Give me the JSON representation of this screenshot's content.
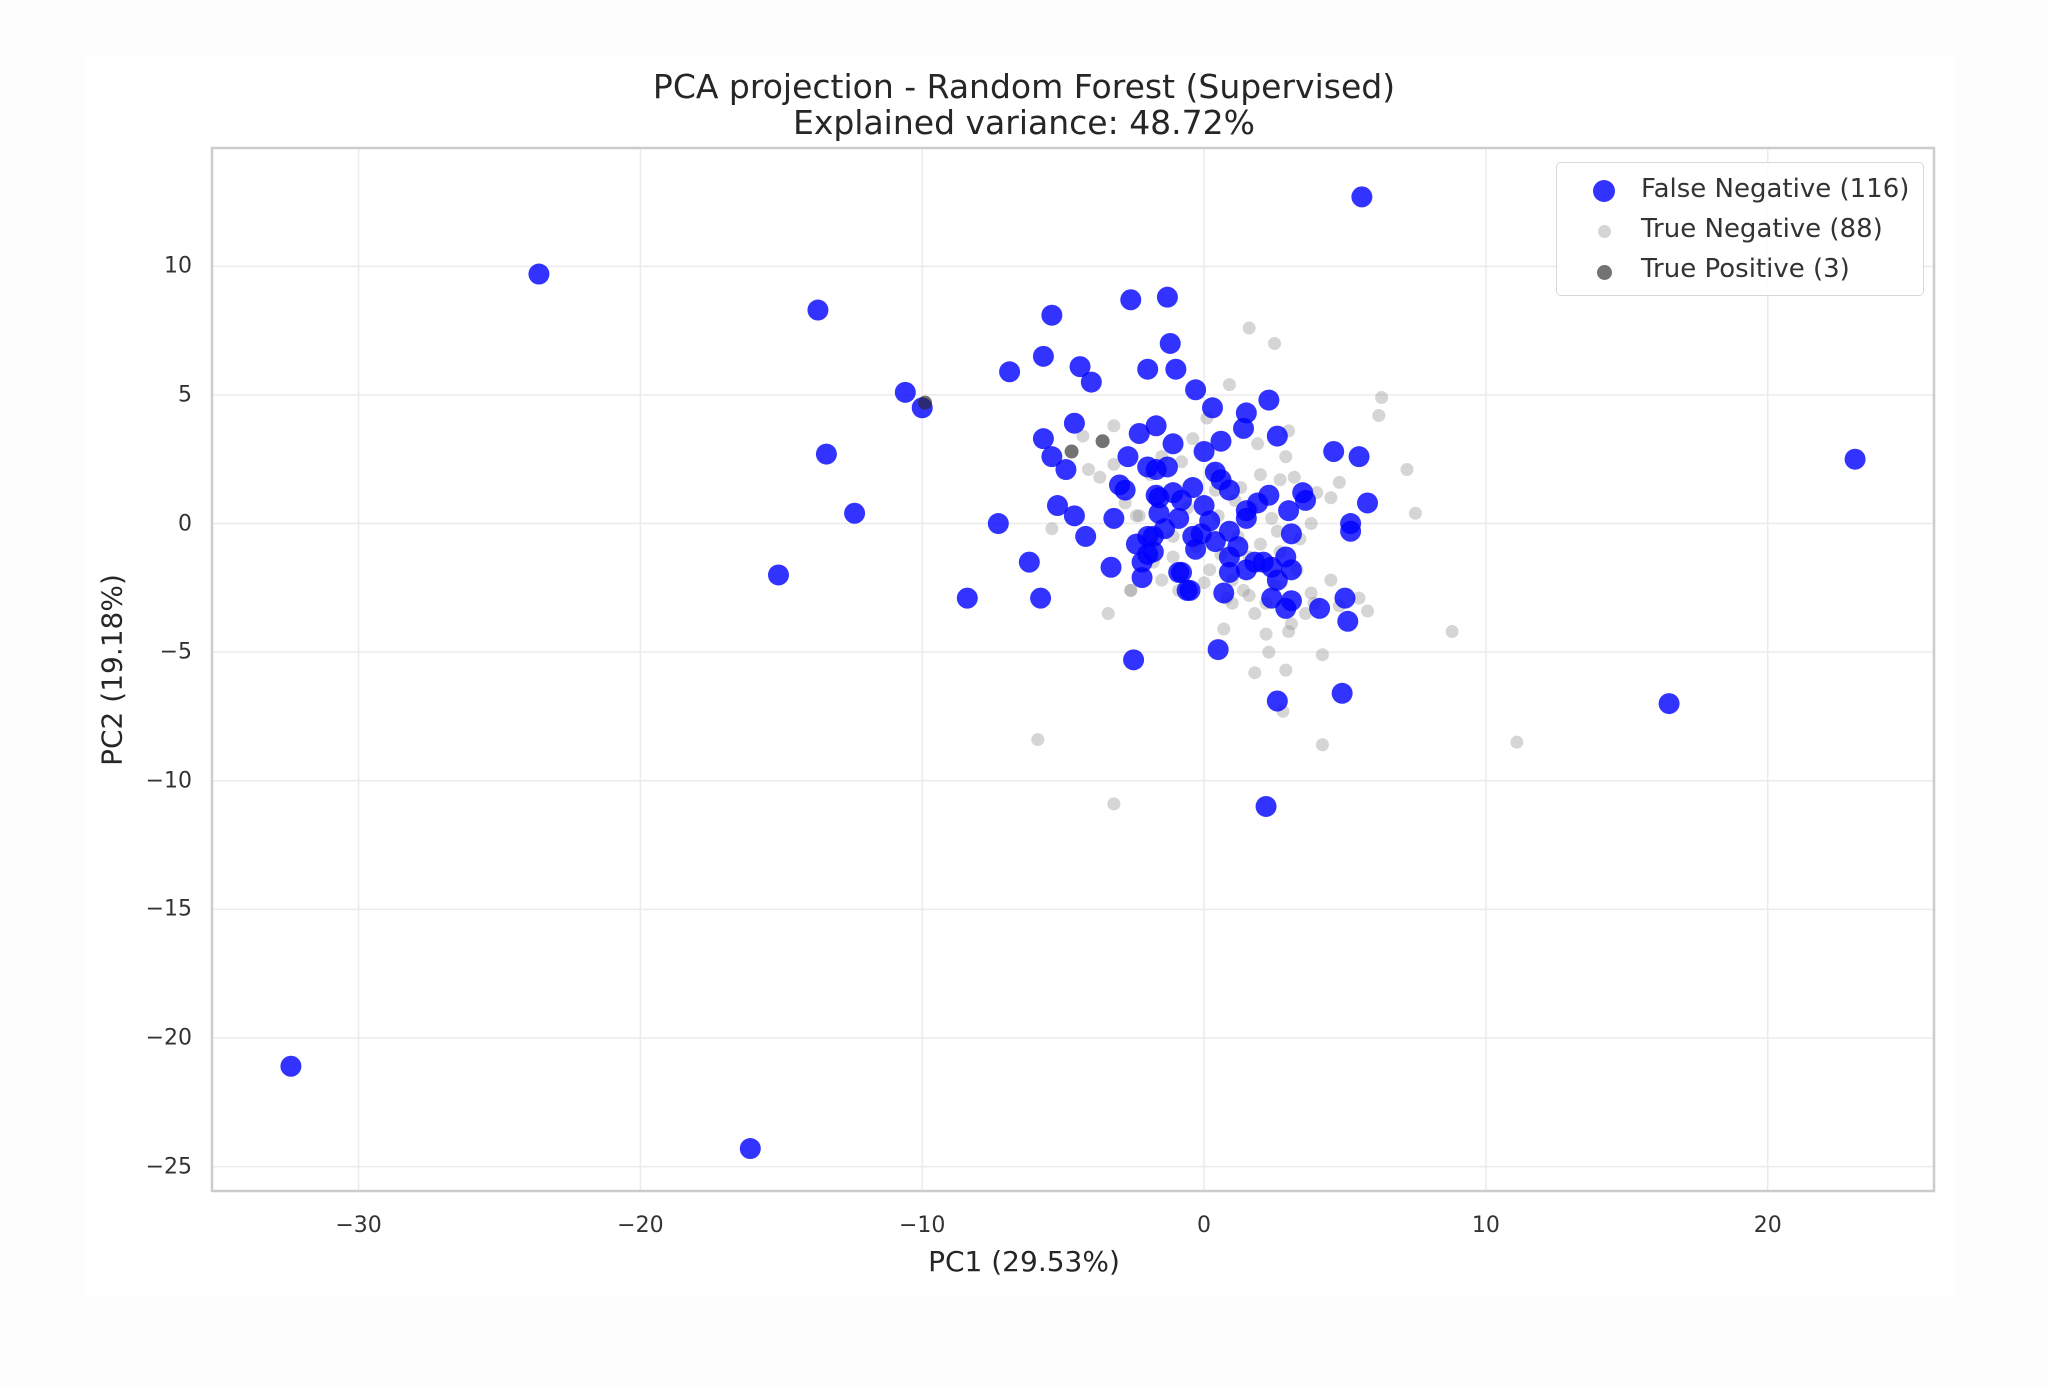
{
  "title": {
    "line1": "PCA projection - Random Forest (Supervised)",
    "line2": "Explained variance: 48.72%"
  },
  "axes": {
    "xlabel": "PC1 (29.53%)",
    "ylabel": "PC2 (19.18%)",
    "xticks": [
      "−30",
      "−20",
      "−10",
      "0",
      "10",
      "20"
    ],
    "yticks": [
      "10",
      "5",
      "0",
      "−5",
      "−10",
      "−15",
      "−20",
      "−25"
    ]
  },
  "legend": {
    "items": [
      {
        "label": "False Negative (116)",
        "color": "#0000ff"
      },
      {
        "label": "True Negative (88)",
        "color": "#bfbfbf"
      },
      {
        "label": "True Positive (3)",
        "color": "#404040"
      }
    ]
  },
  "colors": {
    "false_negative": "#0000ff",
    "true_negative": "#b0b0b0",
    "true_positive": "#333333",
    "grid": "#ebebeb",
    "frame": "#cccccc"
  },
  "chart_data": {
    "type": "scatter",
    "title": "PCA projection - Random Forest (Supervised)\nExplained variance: 48.72%",
    "xlabel": "PC1 (29.53%)",
    "ylabel": "PC2 (19.18%)",
    "xlim": [
      -35.2,
      25.9
    ],
    "ylim": [
      -25.95,
      14.6
    ],
    "xticks": [
      -30,
      -20,
      -10,
      0,
      10,
      20
    ],
    "yticks": [
      -25,
      -20,
      -15,
      -10,
      -5,
      0,
      5,
      10
    ],
    "grid": true,
    "legend_position": "upper right",
    "series": [
      {
        "name": "False Negative (116)",
        "color": "#0000ff",
        "points": [
          [
            -32.4,
            -21.1
          ],
          [
            -23.6,
            9.7
          ],
          [
            -16.1,
            -24.3
          ],
          [
            -15.1,
            -2.0
          ],
          [
            -13.7,
            8.3
          ],
          [
            -13.4,
            2.7
          ],
          [
            -12.4,
            0.4
          ],
          [
            -10.6,
            5.1
          ],
          [
            -10.0,
            4.5
          ],
          [
            -8.4,
            -2.9
          ],
          [
            -7.3,
            0.0
          ],
          [
            -6.9,
            5.9
          ],
          [
            -6.2,
            -1.5
          ],
          [
            -5.8,
            -2.9
          ],
          [
            -5.7,
            6.5
          ],
          [
            -5.7,
            3.3
          ],
          [
            -5.4,
            8.1
          ],
          [
            -5.4,
            2.6
          ],
          [
            -5.2,
            0.7
          ],
          [
            -4.9,
            2.1
          ],
          [
            -4.6,
            3.9
          ],
          [
            -4.6,
            0.3
          ],
          [
            -4.4,
            6.1
          ],
          [
            -4.2,
            -0.5
          ],
          [
            -4.0,
            5.5
          ],
          [
            -3.3,
            -1.7
          ],
          [
            -3.2,
            0.2
          ],
          [
            -2.8,
            1.3
          ],
          [
            -2.7,
            2.6
          ],
          [
            -2.6,
            8.7
          ],
          [
            -2.5,
            -5.3
          ],
          [
            -2.3,
            3.5
          ],
          [
            -2.2,
            -1.5
          ],
          [
            -2.2,
            -2.1
          ],
          [
            -2.0,
            6.0
          ],
          [
            -2.0,
            2.2
          ],
          [
            -2.0,
            -0.5
          ],
          [
            -2.0,
            -1.2
          ],
          [
            -1.7,
            3.8
          ],
          [
            -1.7,
            2.1
          ],
          [
            -1.7,
            1.1
          ],
          [
            -1.8,
            -0.5
          ],
          [
            -1.8,
            -1.1
          ],
          [
            -1.6,
            1.0
          ],
          [
            -1.6,
            0.4
          ],
          [
            -1.3,
            8.8
          ],
          [
            -1.3,
            2.2
          ],
          [
            -1.2,
            7.0
          ],
          [
            -1.1,
            3.1
          ],
          [
            -1.1,
            1.2
          ],
          [
            -1.0,
            6.0
          ],
          [
            -0.9,
            0.2
          ],
          [
            -0.9,
            -1.9
          ],
          [
            -0.8,
            -1.9
          ],
          [
            -0.6,
            -2.6
          ],
          [
            -0.5,
            -2.6
          ],
          [
            -0.4,
            1.4
          ],
          [
            -0.4,
            -0.5
          ],
          [
            -0.3,
            5.2
          ],
          [
            -0.3,
            -1.0
          ],
          [
            -0.1,
            -0.4
          ],
          [
            0.0,
            2.8
          ],
          [
            0.0,
            0.7
          ],
          [
            0.3,
            4.5
          ],
          [
            0.4,
            -0.7
          ],
          [
            0.5,
            -4.9
          ],
          [
            0.6,
            3.2
          ],
          [
            0.6,
            1.7
          ],
          [
            0.7,
            -2.7
          ],
          [
            0.9,
            1.3
          ],
          [
            0.9,
            -0.3
          ],
          [
            0.9,
            -1.3
          ],
          [
            0.9,
            -1.9
          ],
          [
            1.4,
            3.7
          ],
          [
            1.5,
            4.3
          ],
          [
            1.5,
            0.5
          ],
          [
            1.5,
            0.2
          ],
          [
            1.5,
            -1.8
          ],
          [
            1.8,
            -1.5
          ],
          [
            2.1,
            -1.5
          ],
          [
            2.2,
            -11.0
          ],
          [
            2.3,
            4.8
          ],
          [
            2.3,
            1.1
          ],
          [
            2.4,
            -1.7
          ],
          [
            2.4,
            -2.9
          ],
          [
            2.6,
            3.4
          ],
          [
            2.6,
            -2.2
          ],
          [
            2.6,
            -6.9
          ],
          [
            2.9,
            -1.3
          ],
          [
            2.9,
            -3.3
          ],
          [
            3.0,
            0.5
          ],
          [
            3.1,
            -0.4
          ],
          [
            3.1,
            -1.8
          ],
          [
            3.1,
            -3.0
          ],
          [
            3.5,
            1.2
          ],
          [
            3.6,
            0.9
          ],
          [
            4.1,
            -3.3
          ],
          [
            4.6,
            2.8
          ],
          [
            4.9,
            -6.6
          ],
          [
            5.0,
            -2.9
          ],
          [
            5.1,
            -3.8
          ],
          [
            5.2,
            0.0
          ],
          [
            5.2,
            -0.3
          ],
          [
            5.5,
            2.6
          ],
          [
            5.6,
            12.7
          ],
          [
            5.8,
            0.8
          ],
          [
            16.5,
            -7.0
          ],
          [
            23.1,
            2.5
          ],
          [
            -3.0,
            1.5
          ],
          [
            -0.8,
            0.9
          ],
          [
            0.2,
            0.1
          ],
          [
            1.2,
            -0.9
          ],
          [
            -2.4,
            -0.8
          ],
          [
            0.4,
            2.0
          ],
          [
            1.9,
            0.8
          ],
          [
            -1.4,
            -0.2
          ]
        ]
      },
      {
        "name": "True Negative (88)",
        "color": "#bfbfbf",
        "points": [
          [
            -5.9,
            -8.4
          ],
          [
            -5.4,
            -0.2
          ],
          [
            -4.3,
            3.4
          ],
          [
            -3.4,
            -3.5
          ],
          [
            -3.2,
            3.8
          ],
          [
            -3.2,
            2.3
          ],
          [
            -3.2,
            -10.9
          ],
          [
            -2.6,
            -2.6
          ],
          [
            -2.4,
            0.3
          ],
          [
            -2.3,
            0.3
          ],
          [
            -1.1,
            -0.5
          ],
          [
            -1.1,
            -1.3
          ],
          [
            0.0,
            -2.3
          ],
          [
            0.7,
            -4.1
          ],
          [
            0.9,
            5.4
          ],
          [
            1.0,
            -3.1
          ],
          [
            1.6,
            7.6
          ],
          [
            1.6,
            -2.8
          ],
          [
            1.8,
            -3.5
          ],
          [
            1.8,
            -5.8
          ],
          [
            2.2,
            -4.3
          ],
          [
            2.5,
            7.0
          ],
          [
            2.8,
            -7.3
          ],
          [
            2.9,
            -5.7
          ],
          [
            3.0,
            -4.2
          ],
          [
            3.6,
            -3.5
          ],
          [
            3.8,
            -2.7
          ],
          [
            4.2,
            -5.1
          ],
          [
            4.2,
            -8.6
          ],
          [
            5.5,
            -2.9
          ],
          [
            5.8,
            -3.4
          ],
          [
            6.2,
            4.2
          ],
          [
            6.3,
            4.9
          ],
          [
            7.2,
            2.1
          ],
          [
            7.5,
            0.4
          ],
          [
            8.8,
            -4.2
          ],
          [
            11.1,
            -8.5
          ],
          [
            -1.5,
            2.6
          ],
          [
            -0.8,
            2.4
          ],
          [
            0.3,
            2.1
          ],
          [
            0.8,
            1.6
          ],
          [
            1.3,
            1.4
          ],
          [
            2.0,
            1.9
          ],
          [
            2.7,
            1.7
          ],
          [
            3.2,
            1.8
          ],
          [
            4.0,
            1.2
          ],
          [
            4.8,
            1.6
          ],
          [
            -0.6,
            0.6
          ],
          [
            0.5,
            0.3
          ],
          [
            1.1,
            0.9
          ],
          [
            1.7,
            0.6
          ],
          [
            2.4,
            0.2
          ],
          [
            3.8,
            0.0
          ],
          [
            4.5,
            1.0
          ],
          [
            -0.3,
            -0.9
          ],
          [
            0.6,
            -1.2
          ],
          [
            1.2,
            -0.5
          ],
          [
            2.0,
            -0.8
          ],
          [
            2.6,
            -0.3
          ],
          [
            3.4,
            -0.6
          ],
          [
            0.2,
            -1.8
          ],
          [
            1.0,
            -2.2
          ],
          [
            2.5,
            -2.4
          ],
          [
            3.3,
            -1.8
          ],
          [
            4.5,
            -2.2
          ],
          [
            -1.8,
            -1.5
          ],
          [
            -2.6,
            -2.6
          ],
          [
            0.8,
            -2.9
          ],
          [
            2.2,
            -3.1
          ],
          [
            3.1,
            -3.9
          ],
          [
            -1.5,
            -2.2
          ],
          [
            -4.1,
            2.1
          ],
          [
            -3.7,
            1.8
          ],
          [
            -2.8,
            0.8
          ],
          [
            -1.9,
            1.9
          ],
          [
            0.1,
            4.1
          ],
          [
            1.9,
            3.1
          ],
          [
            3.0,
            3.6
          ],
          [
            -0.4,
            3.3
          ],
          [
            2.9,
            2.6
          ],
          [
            0.4,
            1.3
          ],
          [
            1.6,
            -1.3
          ],
          [
            2.7,
            -1.1
          ],
          [
            3.9,
            -3.1
          ],
          [
            4.8,
            -3.2
          ],
          [
            -0.9,
            -2.6
          ],
          [
            1.4,
            -2.6
          ],
          [
            2.3,
            -5.0
          ]
        ]
      },
      {
        "name": "True Positive (3)",
        "color": "#404040",
        "points": [
          [
            -9.9,
            4.7
          ],
          [
            -4.7,
            2.8
          ],
          [
            -3.6,
            3.2
          ]
        ]
      }
    ]
  }
}
